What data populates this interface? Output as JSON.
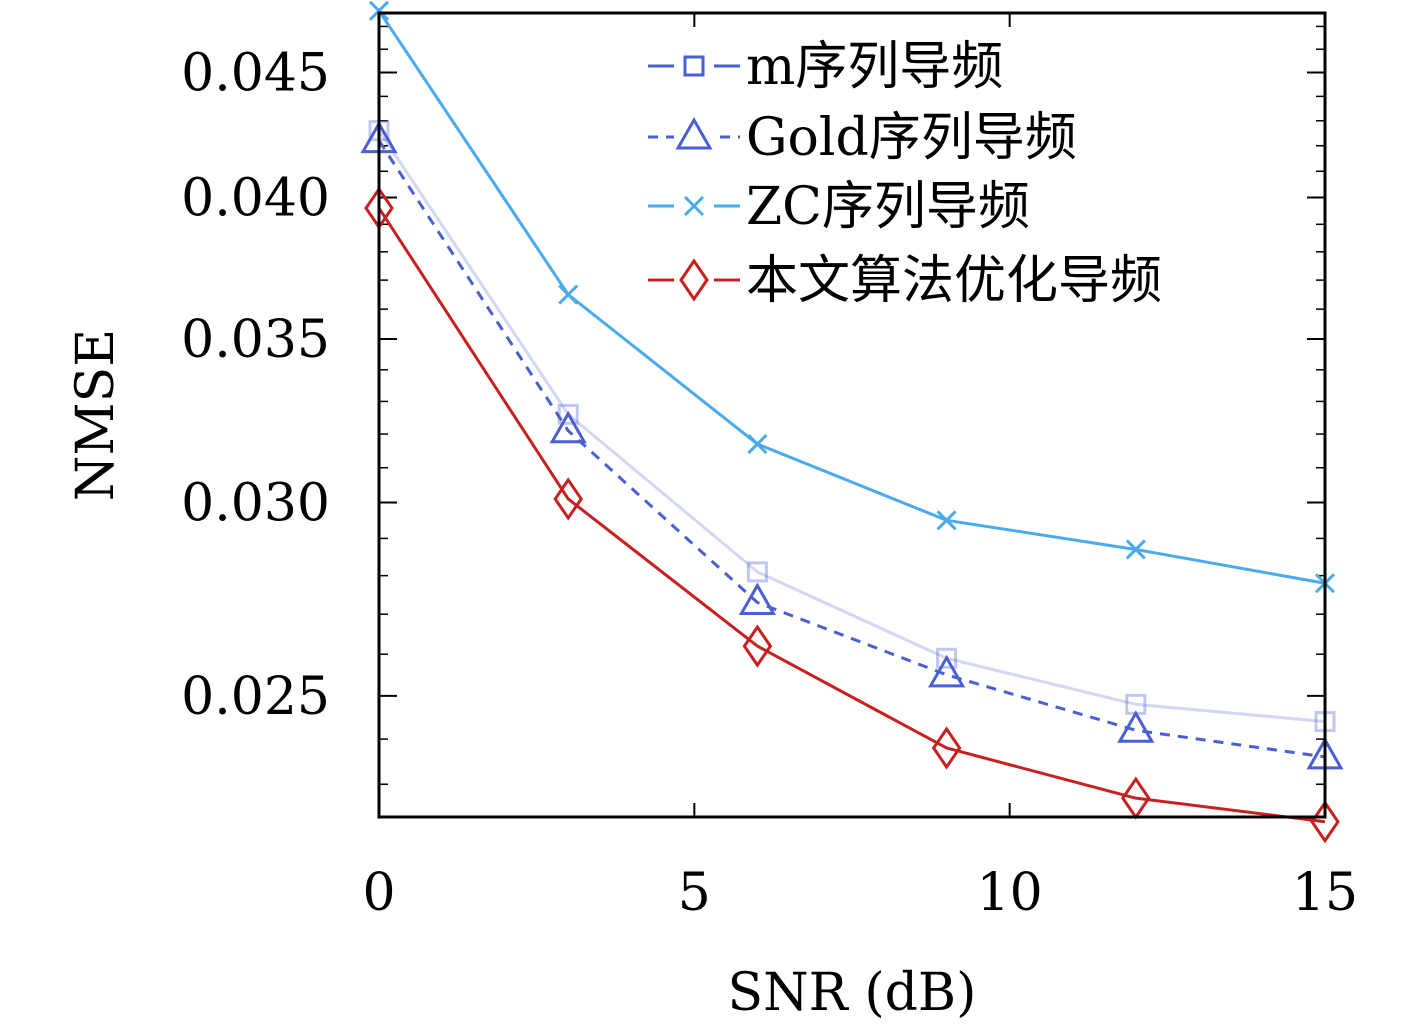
{
  "chart_data": {
    "type": "line",
    "title": "",
    "xlabel": "SNR (dB)",
    "ylabel": "NMSE",
    "x": [
      0,
      3,
      6,
      9,
      12,
      15
    ],
    "xlim": [
      0,
      15
    ],
    "ylim": [
      0.0223,
      0.0476
    ],
    "xticks": [
      0,
      5,
      10,
      15
    ],
    "xtick_labels": [
      "0",
      "5",
      "10",
      "15"
    ],
    "yticks": [
      0.025,
      0.03,
      0.035,
      0.04,
      0.045
    ],
    "ytick_labels": [
      "0.025",
      "0.030",
      "0.035",
      "0.040",
      "0.045"
    ],
    "y_scale": "log",
    "grid": false,
    "legend_position": "top-right",
    "series": [
      {
        "name": "m序列导频",
        "values": [
          0.0426,
          0.0326,
          0.0281,
          0.0259,
          0.0248,
          0.0244
        ],
        "color": "#4a5fd0",
        "line_opacity": 0.25,
        "line_style": "solid",
        "marker": "square"
      },
      {
        "name": "Gold序列导频",
        "values": [
          0.0422,
          0.0321,
          0.0273,
          0.0255,
          0.0242,
          0.0236
        ],
        "color": "#4a5fd0",
        "line_opacity": 1,
        "line_style": "dashed",
        "marker": "triangle"
      },
      {
        "name": "ZC序列导频",
        "values": [
          0.0477,
          0.0365,
          0.0317,
          0.0295,
          0.0287,
          0.0278
        ],
        "color": "#4aaaea",
        "line_opacity": 1,
        "line_style": "solid",
        "marker": "x"
      },
      {
        "name": "本文算法优化导频",
        "values": [
          0.0396,
          0.0301,
          0.0262,
          0.0238,
          0.0227,
          0.0222
        ],
        "color": "#c82020",
        "line_opacity": 1,
        "line_style": "solid",
        "marker": "diamond"
      }
    ]
  }
}
